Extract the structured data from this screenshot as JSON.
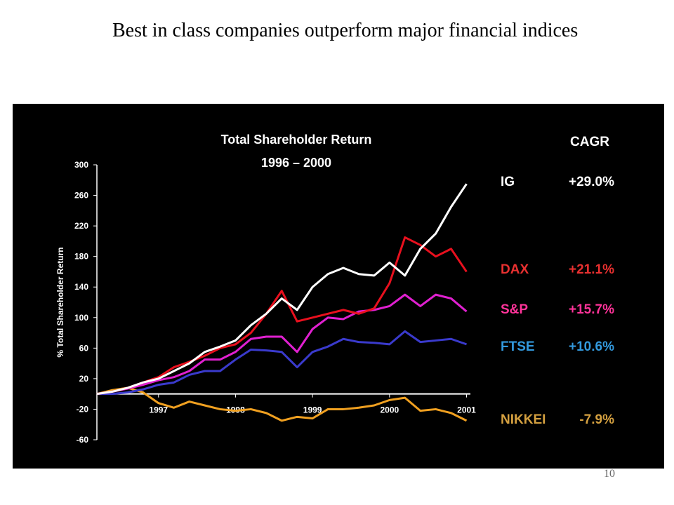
{
  "slide_title": "Best in class companies outperform major financial indices",
  "page_number": "10",
  "chart_data": {
    "type": "line",
    "title": "Total Shareholder Return",
    "subtitle": "1996 – 2000",
    "y_label": "% Total Shareholder Return",
    "legend_header": "CAGR",
    "x": [
      1996.2,
      1996.4,
      1996.6,
      1996.8,
      1997.0,
      1997.2,
      1997.4,
      1997.6,
      1997.8,
      1998.0,
      1998.2,
      1998.4,
      1998.6,
      1998.8,
      1999.0,
      1999.2,
      1999.4,
      1999.6,
      1999.8,
      2000.0,
      2000.2,
      2000.4,
      2000.6,
      2000.8,
      2001.0
    ],
    "xlim": [
      1996.2,
      2001.05
    ],
    "xticks": [
      1997,
      1998,
      1999,
      2000,
      2001
    ],
    "ylim": [
      -60,
      300
    ],
    "yticks": [
      -60,
      -20,
      20,
      60,
      100,
      140,
      180,
      220,
      260,
      300
    ],
    "series": [
      {
        "name": "IG",
        "cagr": "+29.0%",
        "color": "#ffffff",
        "label_color": "#ffffff",
        "values": [
          0,
          3,
          8,
          15,
          20,
          30,
          40,
          55,
          62,
          70,
          90,
          105,
          125,
          110,
          140,
          157,
          165,
          157,
          155,
          172,
          155,
          190,
          210,
          245,
          275
        ]
      },
      {
        "name": "DAX",
        "cagr": "+21.1%",
        "color": "#e8101e",
        "label_color": "#e83030",
        "values": [
          0,
          3,
          8,
          15,
          22,
          35,
          42,
          50,
          60,
          65,
          80,
          105,
          135,
          95,
          100,
          105,
          110,
          105,
          112,
          145,
          205,
          195,
          180,
          190,
          160
        ]
      },
      {
        "name": "S&P",
        "cagr": "+15.7%",
        "color": "#e020d0",
        "label_color": "#ff3399",
        "values": [
          0,
          3,
          7,
          12,
          18,
          22,
          30,
          45,
          45,
          55,
          72,
          75,
          75,
          55,
          85,
          100,
          98,
          108,
          110,
          115,
          130,
          115,
          130,
          125,
          108
        ]
      },
      {
        "name": "FTSE",
        "cagr": "+10.6%",
        "color": "#3a3acc",
        "label_color": "#3399dd",
        "values": [
          0,
          0,
          2,
          6,
          12,
          15,
          25,
          30,
          30,
          45,
          58,
          57,
          55,
          35,
          55,
          62,
          72,
          68,
          67,
          65,
          82,
          68,
          70,
          72,
          65
        ]
      },
      {
        "name": "NIKKEI",
        "cagr": "-7.9%",
        "color": "#f0a020",
        "label_color": "#d4a040",
        "values": [
          0,
          5,
          8,
          2,
          -12,
          -18,
          -10,
          -15,
          -20,
          -22,
          -20,
          -25,
          -35,
          -30,
          -32,
          -20,
          -20,
          -18,
          -15,
          -8,
          -5,
          -22,
          -20,
          -25,
          -35
        ]
      }
    ]
  }
}
